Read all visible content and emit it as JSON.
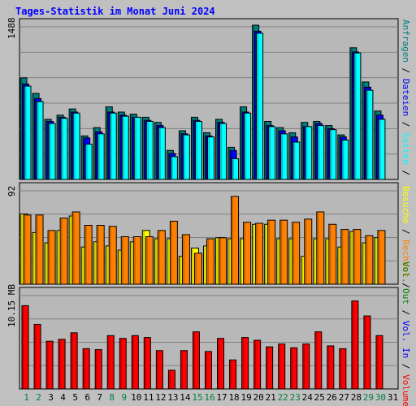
{
  "title": "Tages-Statistik im Monat Juni 2024",
  "colors": {
    "background": "#c0c0c0",
    "panel": "#b8b8b8",
    "gridline": "#808080",
    "hits": "#008080",
    "files": "#0000ff",
    "pages": "#00ffff",
    "visits": "#ffff00",
    "sites": "#ff8000",
    "volume": "#ff0000",
    "weekend_label": "#008040",
    "weekday_label": "#000000"
  },
  "chart_data": [
    {
      "type": "bar",
      "panel": "top",
      "ylabel": "1488",
      "ylim": [
        0,
        1488
      ],
      "x": [
        1,
        2,
        3,
        4,
        5,
        6,
        7,
        8,
        9,
        10,
        11,
        12,
        13,
        14,
        15,
        16,
        17,
        18,
        19,
        20,
        21,
        22,
        23,
        24,
        25,
        26,
        27,
        28,
        29,
        30
      ],
      "series": [
        {
          "name": "Anfragen",
          "color": "#008080",
          "values": [
            980,
            830,
            580,
            620,
            680,
            420,
            500,
            700,
            650,
            630,
            600,
            550,
            280,
            470,
            600,
            450,
            580,
            310,
            700,
            1488,
            560,
            500,
            450,
            550,
            560,
            520,
            430,
            1270,
            940,
            660
          ]
        },
        {
          "name": "Dateien",
          "color": "#0000ff",
          "values": [
            920,
            780,
            560,
            600,
            650,
            400,
            460,
            650,
            620,
            600,
            570,
            520,
            250,
            440,
            570,
            420,
            550,
            280,
            650,
            1430,
            520,
            470,
            410,
            510,
            540,
            490,
            410,
            1230,
            890,
            620
          ]
        },
        {
          "name": "Seiten",
          "color": "#00ffff",
          "values": [
            900,
            750,
            540,
            590,
            640,
            340,
            440,
            640,
            610,
            600,
            560,
            500,
            220,
            430,
            560,
            410,
            540,
            200,
            640,
            1410,
            510,
            440,
            360,
            510,
            520,
            480,
            380,
            1220,
            860,
            580
          ]
        }
      ]
    },
    {
      "type": "bar",
      "panel": "middle",
      "ylabel": "92",
      "ylim": [
        0,
        92
      ],
      "x": [
        1,
        2,
        3,
        4,
        5,
        6,
        7,
        8,
        9,
        10,
        11,
        12,
        13,
        14,
        15,
        16,
        17,
        18,
        19,
        20,
        21,
        22,
        23,
        24,
        25,
        26,
        27,
        28,
        29,
        30
      ],
      "series": [
        {
          "name": "Besuche",
          "color": "#ffff00",
          "values": [
            68,
            50,
            40,
            52,
            66,
            36,
            41,
            37,
            33,
            41,
            52,
            44,
            44,
            27,
            35,
            37,
            45,
            44,
            44,
            58,
            58,
            44,
            44,
            27,
            44,
            44,
            36,
            51,
            40,
            45
          ]
        },
        {
          "name": "Rechner",
          "color": "#ff8000",
          "values": [
            67,
            67,
            52,
            64,
            70,
            57,
            57,
            56,
            46,
            46,
            46,
            52,
            61,
            48,
            30,
            44,
            45,
            85,
            60,
            59,
            62,
            62,
            60,
            63,
            70,
            58,
            53,
            53,
            47,
            52
          ]
        }
      ]
    },
    {
      "type": "bar",
      "panel": "bottom",
      "ylabel": "10.15 MB",
      "ylim": [
        0,
        10.15
      ],
      "x": [
        1,
        2,
        3,
        4,
        5,
        6,
        7,
        8,
        9,
        10,
        11,
        12,
        13,
        14,
        15,
        16,
        17,
        18,
        19,
        20,
        21,
        22,
        23,
        24,
        25,
        26,
        27,
        28,
        29,
        30
      ],
      "series": [
        {
          "name": "Volumen",
          "color": "#ff0000",
          "values": [
            8.9,
            6.9,
            5.1,
            5.3,
            6.0,
            4.3,
            4.2,
            5.7,
            5.4,
            5.7,
            5.5,
            4.1,
            2.0,
            4.1,
            6.1,
            4.0,
            5.4,
            3.1,
            5.5,
            5.2,
            4.5,
            4.8,
            4.4,
            4.8,
            6.1,
            4.6,
            4.3,
            9.4,
            7.8,
            5.7
          ]
        }
      ]
    }
  ],
  "x_labels": [
    "1",
    "2",
    "3",
    "4",
    "5",
    "6",
    "7",
    "8",
    "9",
    "10",
    "11",
    "12",
    "13",
    "14",
    "15",
    "16",
    "17",
    "18",
    "19",
    "20",
    "21",
    "22",
    "23",
    "24",
    "25",
    "26",
    "27",
    "28",
    "29",
    "30",
    "31"
  ],
  "weekend_days": [
    1,
    2,
    8,
    9,
    15,
    16,
    22,
    23,
    29,
    30
  ],
  "right_legend": {
    "top": [
      {
        "text": "Anfragen",
        "color": "#008080"
      },
      {
        "text": " / ",
        "color": "#000000"
      },
      {
        "text": "Dateien",
        "color": "#0000ff"
      },
      {
        "text": " / ",
        "color": "#000000"
      },
      {
        "text": "Seiten",
        "color": "#00ffff"
      },
      {
        "text": " / ",
        "color": "#000000"
      }
    ],
    "middle": [
      {
        "text": "Besuche",
        "color": "#ffff00"
      },
      {
        "text": " / ",
        "color": "#000000"
      },
      {
        "text": "Rechner",
        "color": "#ff8000"
      },
      {
        "text": " / ",
        "color": "#000000"
      }
    ],
    "bottom": [
      {
        "text": "Vol. Out",
        "color": "#008000"
      },
      {
        "text": " / ",
        "color": "#000000"
      },
      {
        "text": "Vol. In",
        "color": "#0000ff"
      },
      {
        "text": " / ",
        "color": "#000000"
      },
      {
        "text": "Volumen",
        "color": "#ff0000"
      }
    ]
  }
}
